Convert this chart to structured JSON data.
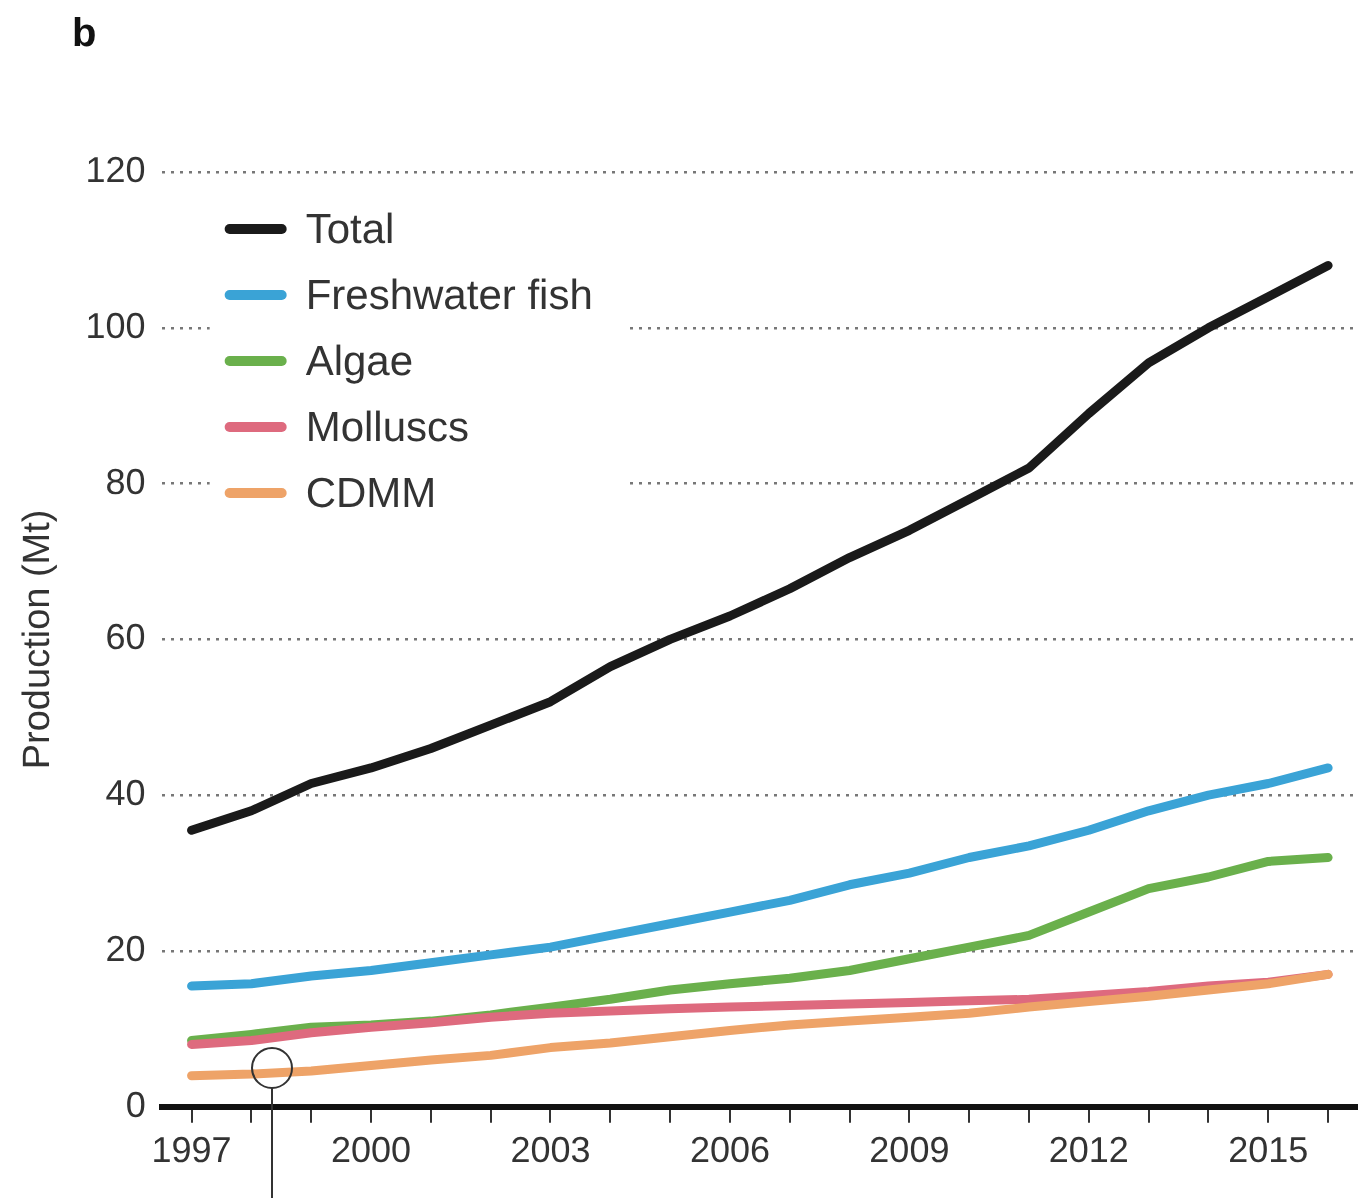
{
  "chart_data": {
    "type": "line",
    "title": "b",
    "ylabel": "Production (Mt)",
    "x": [
      1997,
      1998,
      1999,
      2000,
      2001,
      2002,
      2003,
      2004,
      2005,
      2006,
      2007,
      2008,
      2009,
      2010,
      2011,
      2012,
      2013,
      2014,
      2015,
      2016
    ],
    "series": [
      {
        "name": "Total",
        "color": "#1a1a1a",
        "values": [
          35.5,
          38,
          41.5,
          43.5,
          46,
          49,
          52,
          56.5,
          60,
          63,
          66.5,
          70.5,
          74,
          78,
          82,
          89,
          95.5,
          100,
          104,
          108
        ]
      },
      {
        "name": "Freshwater fish",
        "color": "#3aa3d6",
        "values": [
          15.5,
          15.8,
          16.8,
          17.5,
          18.5,
          19.5,
          20.5,
          22,
          23.5,
          25,
          26.5,
          28.5,
          30,
          32,
          33.5,
          35.5,
          38,
          40,
          41.5,
          43.5
        ]
      },
      {
        "name": "Algae",
        "color": "#6ab04c",
        "values": [
          8.5,
          9.3,
          10.2,
          10.5,
          11,
          11.8,
          12.8,
          13.8,
          15,
          15.8,
          16.5,
          17.5,
          19,
          20.5,
          22,
          25,
          28,
          29.5,
          31.5,
          32
        ]
      },
      {
        "name": "Molluscs",
        "color": "#de6a7e",
        "values": [
          8,
          8.5,
          9.5,
          10.2,
          10.8,
          11.5,
          12,
          12.3,
          12.6,
          12.8,
          13,
          13.2,
          13.4,
          13.6,
          13.8,
          14.3,
          14.8,
          15.5,
          16,
          17
        ]
      },
      {
        "name": "CDMM",
        "color": "#eea368",
        "values": [
          4,
          4.2,
          4.6,
          5.3,
          6,
          6.6,
          7.6,
          8.2,
          9,
          9.8,
          10.5,
          11,
          11.5,
          12,
          12.8,
          13.5,
          14.2,
          15,
          15.8,
          17
        ]
      }
    ],
    "xlim": [
      1996.5,
      2016.5
    ],
    "xticks": [
      1997,
      {
        "value": 1998,
        "label": null
      },
      {
        "value": 1999,
        "label": null
      },
      2000,
      {
        "value": 2001,
        "label": null
      },
      {
        "value": 2002,
        "label": null
      },
      2003,
      {
        "value": 2004,
        "label": null
      },
      {
        "value": 2005,
        "label": null
      },
      2006,
      {
        "value": 2007,
        "label": null
      },
      {
        "value": 2008,
        "label": null
      },
      2009,
      {
        "value": 2010,
        "label": null
      },
      {
        "value": 2011,
        "label": null
      },
      2012,
      {
        "value": 2013,
        "label": null
      },
      {
        "value": 2014,
        "label": null
      },
      2015,
      {
        "value": 2016,
        "label": null
      }
    ],
    "ylim": [
      0,
      120
    ],
    "yticks": [
      0,
      20,
      40,
      60,
      80,
      100,
      120
    ],
    "grid": "y",
    "legend": "top left",
    "marker": "none",
    "line_style": "solid"
  }
}
